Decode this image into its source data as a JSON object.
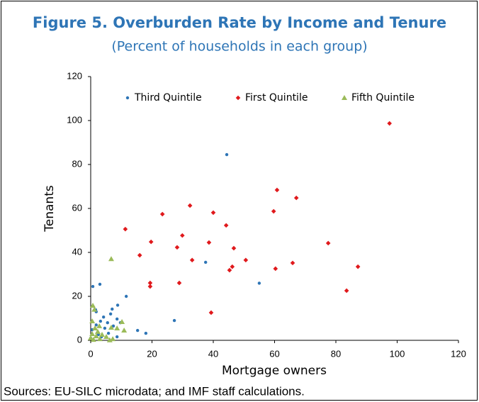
{
  "chart_data": {
    "type": "scatter",
    "title": "Figure 5. Overburden Rate by Income and Tenure",
    "subtitle": "(Percent of households in each group)",
    "x_label": "Mortgage owners",
    "y_label": "Tenants",
    "source": "Sources: EU-SILC microdata; and IMF staff calculations.",
    "xlim": [
      0,
      120
    ],
    "ylim": [
      0,
      120
    ],
    "xticks": [
      0,
      20,
      40,
      60,
      80,
      100,
      120
    ],
    "yticks": [
      0,
      20,
      40,
      60,
      80,
      100,
      120
    ],
    "grid": false,
    "series": [
      {
        "name": "Third Quintile",
        "color": "#2e75b6",
        "marker": "circle",
        "x": [
          44.4,
          55,
          37.5,
          27.3,
          0.7,
          3,
          11.6,
          8.8,
          7,
          1.8,
          1.6,
          15.3,
          18,
          6.5,
          4.2,
          3.2,
          5.5,
          8.6,
          9.7,
          1.8,
          7.4,
          4.6,
          0.5,
          5.8,
          2.5,
          3.5,
          8.6,
          0
        ],
        "values": [
          84.5,
          26,
          35.5,
          9,
          24.5,
          25.5,
          20,
          16,
          14.2,
          13,
          13.9,
          4.5,
          3.2,
          12,
          10.6,
          8.7,
          8,
          9.7,
          8,
          7,
          6.5,
          5.5,
          4.8,
          3.2,
          2.6,
          1.6,
          1.6,
          1
        ]
      },
      {
        "name": "First Quintile",
        "color": "#e0191c",
        "marker": "diamond",
        "x": [
          97.5,
          60.8,
          67.1,
          59.7,
          32.4,
          23.4,
          40,
          29.9,
          44.2,
          11.3,
          19.7,
          16,
          28.2,
          38.6,
          46.7,
          33.1,
          50.6,
          46.2,
          45.3,
          60.3,
          65.9,
          77.5,
          87.2,
          83.5,
          19.4,
          19.4,
          28.9,
          39.3
        ],
        "values": [
          98.7,
          68.4,
          64.8,
          58.7,
          61.3,
          57.4,
          58.1,
          47.7,
          52.3,
          50.6,
          44.8,
          38.7,
          42.3,
          44.5,
          41.9,
          36.5,
          36.5,
          33.5,
          31.9,
          32.6,
          35.2,
          44.2,
          33.5,
          22.6,
          26.1,
          24.5,
          26.1,
          12.6
        ]
      },
      {
        "name": "Fifth Quintile",
        "color": "#9bbb59",
        "marker": "triangle",
        "x": [
          6.7,
          0.7,
          1.2,
          0.5,
          10.2,
          2.8,
          1.4,
          6.7,
          8.6,
          10.9,
          2.3,
          0.5,
          3.7,
          1.8,
          5.1,
          0,
          3,
          7.2,
          0.9,
          6.2
        ],
        "values": [
          37,
          15.8,
          14,
          8.7,
          8.4,
          6.5,
          5.5,
          5.8,
          5.5,
          4.5,
          3.9,
          2.9,
          2.6,
          1.9,
          1.6,
          1,
          0.6,
          0.6,
          0.3,
          0.1
        ]
      }
    ]
  }
}
